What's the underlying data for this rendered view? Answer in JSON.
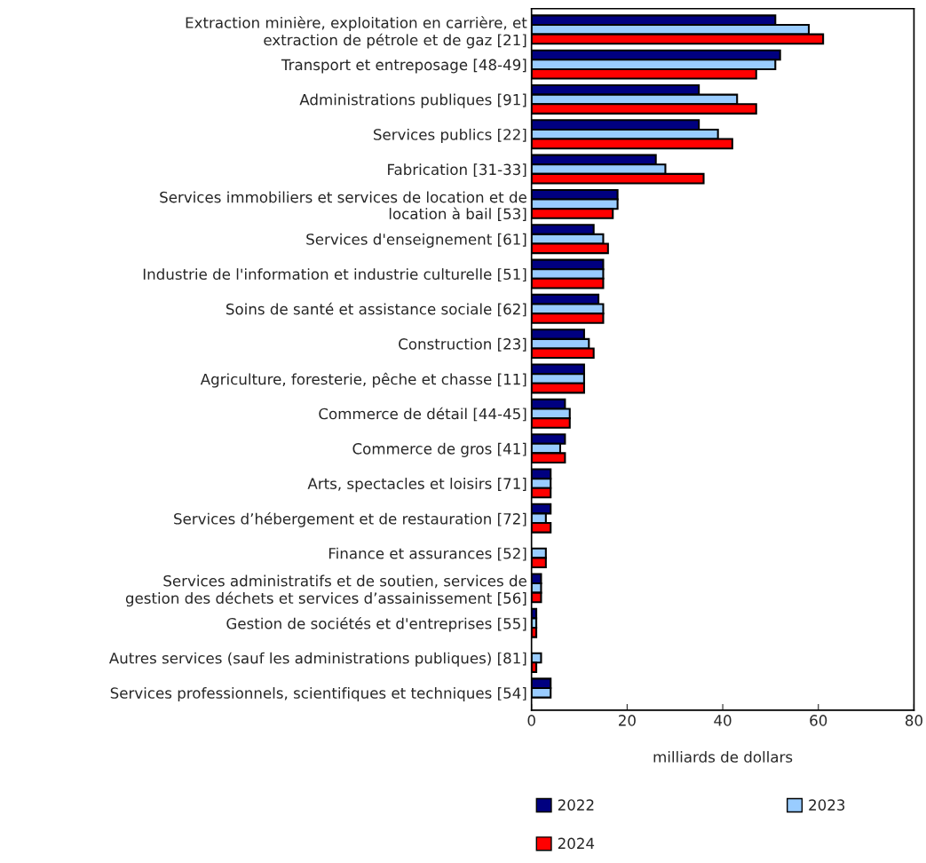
{
  "chart_data": {
    "type": "bar",
    "orientation": "horizontal",
    "xlabel": "milliards de dollars",
    "categories": [
      "Extraction minière, exploitation en carrière, et\nextraction de pétrole et de gaz [21]",
      "Transport et entreposage [48-49]",
      "Administrations publiques [91]",
      "Services publics [22]",
      "Fabrication [31-33]",
      "Services immobiliers et services de location et de\nlocation à bail [53]",
      "Services d'enseignement [61]",
      "Industrie de l'information et industrie culturelle [51]",
      "Soins de santé et assistance sociale [62]",
      "Construction [23]",
      "Agriculture, foresterie, pêche et chasse [11]",
      "Commerce de détail [44-45]",
      "Commerce de gros [41]",
      "Arts, spectacles et loisirs [71]",
      "Services d’hébergement et de restauration [72]",
      "Finance et assurances [52]",
      "Services administratifs et de soutien, services de\ngestion des déchets et services d’assainissement [56]",
      "Gestion de sociétés et d'entreprises [55]",
      "Autres services (sauf les administrations publiques) [81]",
      "Services professionnels, scientifiques et techniques [54]"
    ],
    "series": [
      {
        "name": "2022",
        "color": "#000080",
        "values": [
          51,
          52,
          35,
          35,
          26,
          18,
          13,
          15,
          14,
          11,
          11,
          7,
          7,
          4,
          4,
          null,
          2,
          1,
          null,
          4
        ]
      },
      {
        "name": "2023",
        "color": "#99ccff",
        "values": [
          58,
          51,
          43,
          39,
          28,
          18,
          15,
          15,
          15,
          12,
          11,
          8,
          6,
          4,
          3,
          3,
          2,
          1,
          2,
          4
        ]
      },
      {
        "name": "2024",
        "color": "#ff0000",
        "values": [
          61,
          47,
          47,
          42,
          36,
          17,
          16,
          15,
          15,
          13,
          11,
          8,
          7,
          4,
          4,
          3,
          2,
          1,
          1,
          null
        ]
      }
    ],
    "xlim": [
      0,
      80
    ],
    "xticks": [
      0,
      20,
      40,
      60,
      80
    ],
    "legend": "bottom",
    "grid": false
  }
}
